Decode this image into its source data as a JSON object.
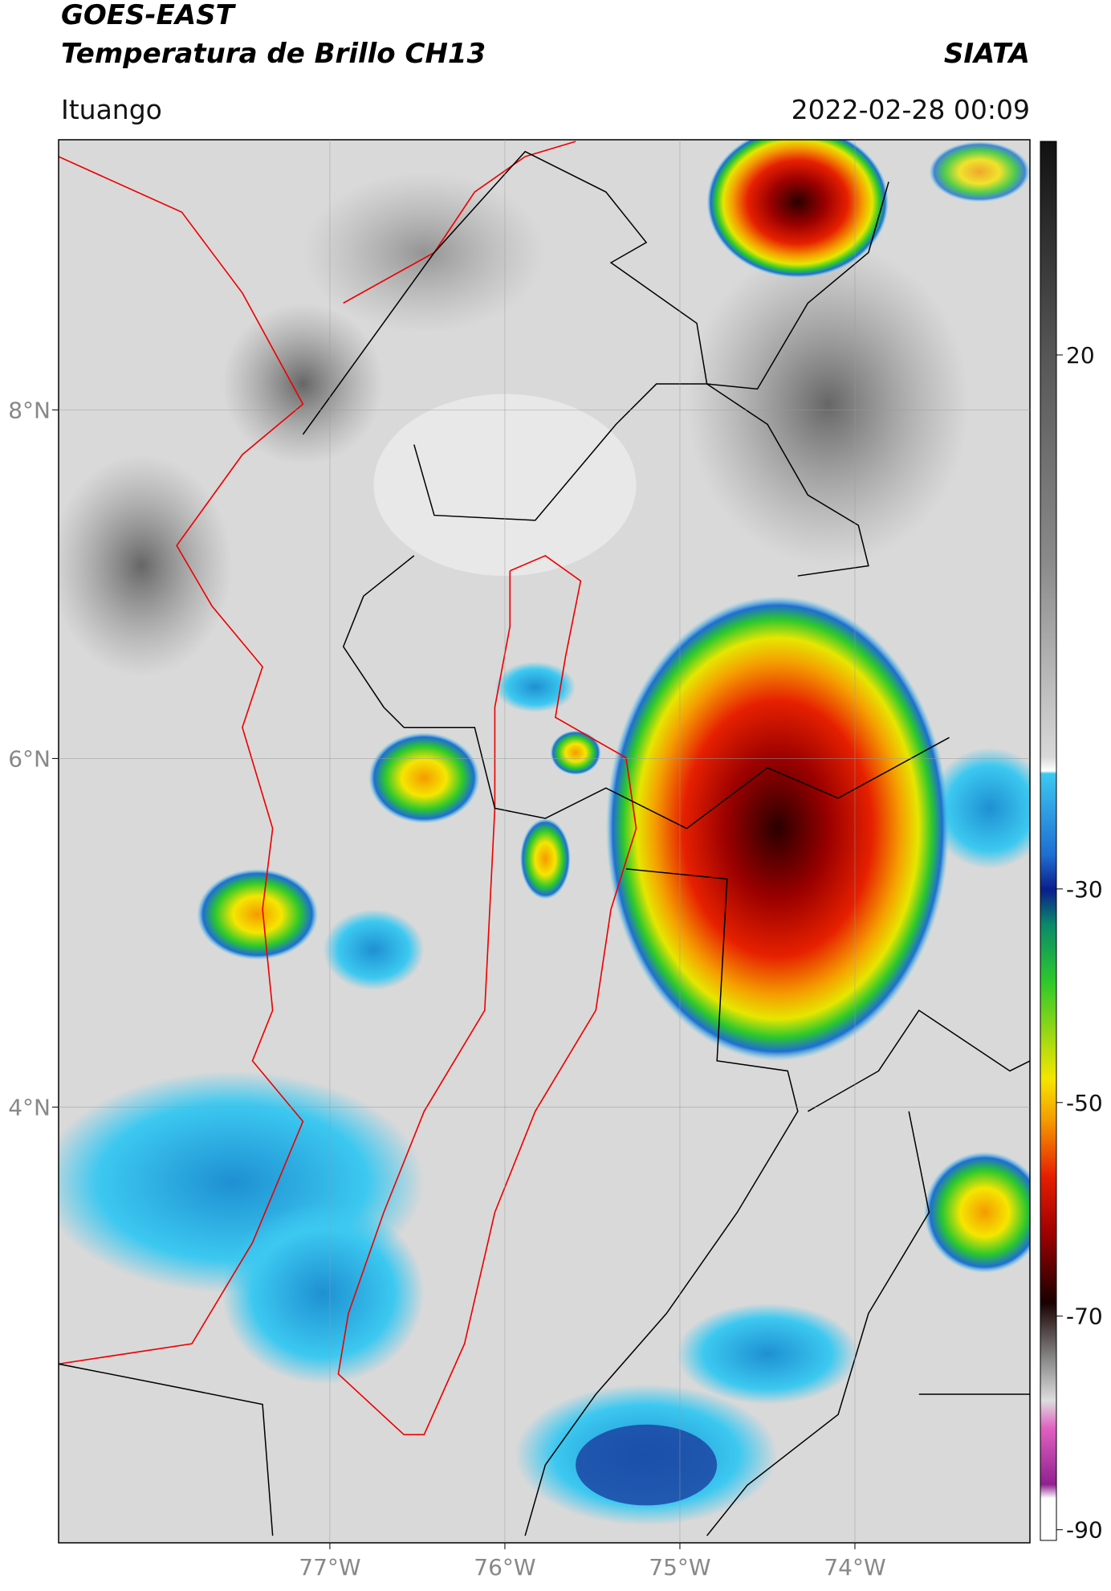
{
  "header": {
    "title_line1": "GOES-EAST",
    "title_line2": "Temperatura de Brillo CH13",
    "source": "SIATA",
    "region": "Ituango",
    "datetime": "2022-02-28 00:09"
  },
  "map": {
    "xlim": [
      -78.55,
      -73.0
    ],
    "ylim": [
      1.5,
      9.55
    ],
    "xticks": [
      {
        "value": -77,
        "label": "77°W"
      },
      {
        "value": -76,
        "label": "76°W"
      },
      {
        "value": -75,
        "label": "75°W"
      },
      {
        "value": -74,
        "label": "74°W"
      }
    ],
    "yticks": [
      {
        "value": 8,
        "label": "8°N"
      },
      {
        "value": 6,
        "label": "6°N"
      },
      {
        "value": 4,
        "label": "4°N"
      }
    ],
    "grid": true
  },
  "colorbar": {
    "lim": [
      -91,
      40
    ],
    "ticks": [
      20,
      -30,
      -50,
      -70,
      -90
    ]
  }
}
